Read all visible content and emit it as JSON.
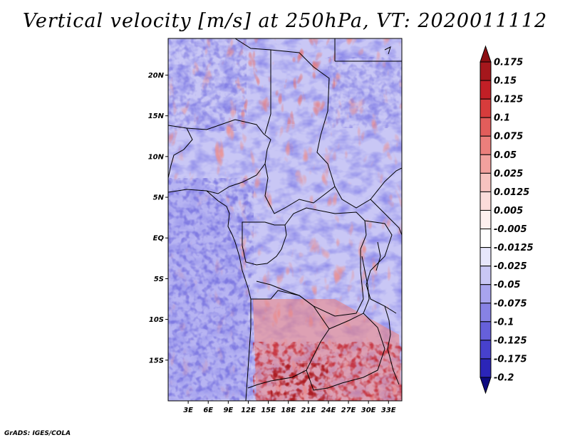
{
  "title": "Vertical velocity [m/s] at 250hPa, VT: 2020011112",
  "credit": "GrADS: IGES/COLA",
  "map": {
    "lon_range": [
      0,
      35
    ],
    "lat_range": [
      -20,
      24.5
    ],
    "lat_ticks": [
      "20N",
      "15N",
      "10N",
      "5N",
      "EQ",
      "5S",
      "10S",
      "15S"
    ],
    "lat_values": [
      20,
      15,
      10,
      5,
      0,
      -5,
      -10,
      -15
    ],
    "lon_ticks": [
      "3E",
      "6E",
      "9E",
      "12E",
      "15E",
      "18E",
      "21E",
      "24E",
      "27E",
      "30E",
      "33E"
    ],
    "lon_values": [
      3,
      6,
      9,
      12,
      15,
      18,
      21,
      24,
      27,
      30,
      33
    ]
  },
  "colorbar": {
    "labels": [
      "0.175",
      "0.15",
      "0.125",
      "0.1",
      "0.075",
      "0.05",
      "0.025",
      "0.0125",
      "0.005",
      "-0.005",
      "-0.0125",
      "-0.025",
      "-0.05",
      "-0.075",
      "-0.1",
      "-0.125",
      "-0.175",
      "-0.2"
    ],
    "colors": [
      "#a5171c",
      "#c21f26",
      "#d73c3c",
      "#e25d5b",
      "#ec7f7c",
      "#f2a19e",
      "#f7c3c0",
      "#fbdcda",
      "#fdf0ef",
      "#ffffff",
      "#e7e6fb",
      "#c9c7f5",
      "#a8a4ee",
      "#8782e5",
      "#6660da",
      "#4741cd",
      "#2b25b8",
      "#16119a"
    ],
    "top_color": "#8c0e12",
    "bottom_color": "#0d0a80"
  },
  "colors": {
    "ocean_blue": "#8d8ae9",
    "land_red": "#ee9290",
    "border": "#000000"
  }
}
